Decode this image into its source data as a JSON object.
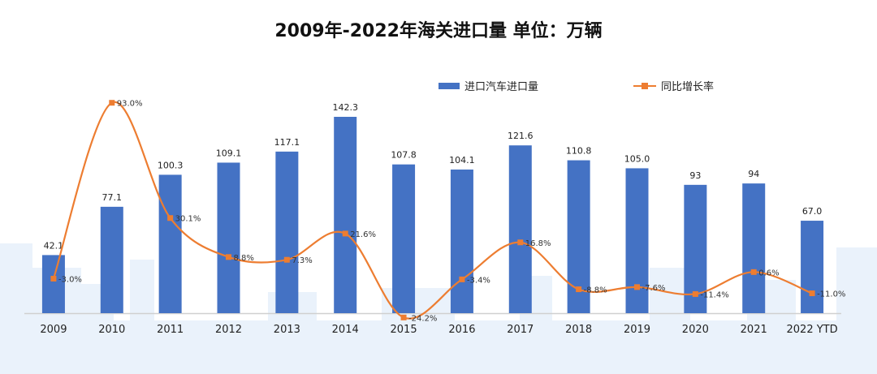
{
  "title": "2009年-2022年海关进口量  单位：万辆",
  "legend": {
    "bar": "进口汽车进口量",
    "line": "同比增长率"
  },
  "colors": {
    "bar": "#4472C4",
    "line": "#ED7D31",
    "background_skyline": "#EAF2FB"
  },
  "chart_data": {
    "type": "bar",
    "title": "2009年-2022年海关进口量  单位：万辆",
    "xlabel": "",
    "ylabel": "",
    "categories": [
      "2009",
      "2010",
      "2011",
      "2012",
      "2013",
      "2014",
      "2015",
      "2016",
      "2017",
      "2018",
      "2019",
      "2020",
      "2021",
      "2022 YTD"
    ],
    "series": [
      {
        "name": "进口汽车进口量",
        "type": "bar",
        "values": [
          42.1,
          77.1,
          100.3,
          109.1,
          117.1,
          142.3,
          107.8,
          104.1,
          121.6,
          110.8,
          105.0,
          93,
          94,
          67.0
        ],
        "labels": [
          "42.1",
          "77.1",
          "100.3",
          "109.1",
          "117.1",
          "142.3",
          "107.8",
          "104.1",
          "121.6",
          "110.8",
          "105.0",
          "93",
          "94",
          "67.0"
        ]
      },
      {
        "name": "同比增长率",
        "type": "line",
        "values": [
          -3.0,
          93.0,
          30.1,
          8.8,
          7.3,
          21.6,
          -24.2,
          -3.4,
          16.8,
          -8.8,
          -7.6,
          -11.4,
          0.6,
          -11.0
        ],
        "labels": [
          "-3.0%",
          "93.0%",
          "30.1%",
          "8.8%",
          "7.3%",
          "21.6%",
          "-24.2%",
          "-3.4%",
          "16.8%",
          "-8.8%",
          "-7.6%",
          "-11.4%",
          "0.6%",
          "-11.0%"
        ]
      }
    ],
    "ylim": [
      0,
      160
    ],
    "y2lim": [
      -40,
      110
    ],
    "grid": false,
    "legend_position": "top-right"
  }
}
